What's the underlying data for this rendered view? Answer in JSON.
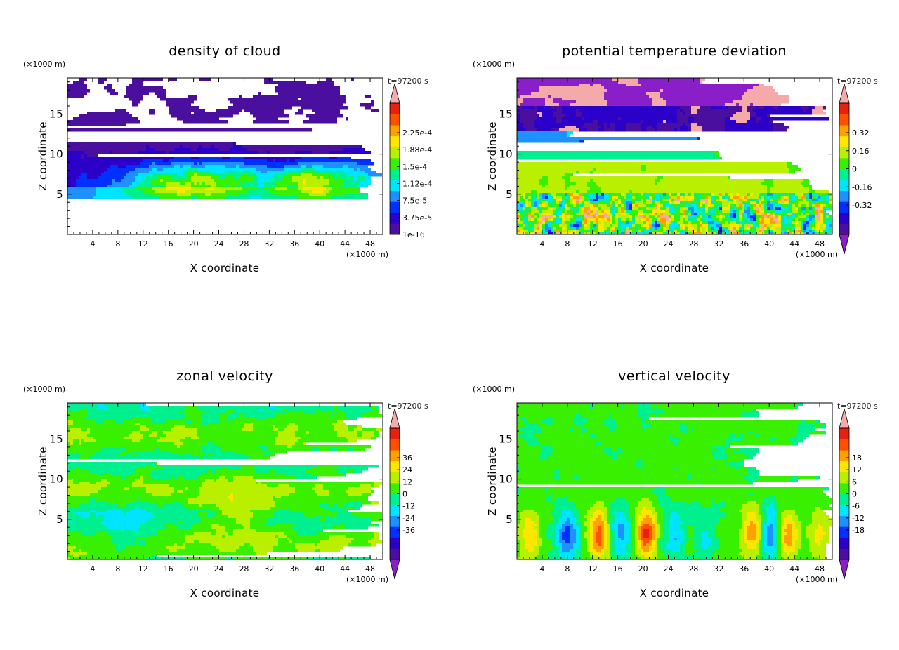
{
  "time_label": "t=97200 s",
  "chart_data": [
    {
      "type": "heatmap",
      "title": "density of cloud",
      "xlabel": "X coordinate",
      "ylabel": "Z coordinate",
      "x_unit": "(×1000 m)",
      "y_unit": "(×1000 m)",
      "x_ticks": [
        4,
        8,
        12,
        16,
        20,
        24,
        28,
        32,
        36,
        40,
        44,
        48
      ],
      "y_ticks": [
        5,
        10,
        15
      ],
      "xlim": [
        0,
        50
      ],
      "ylim": [
        0,
        19.5
      ],
      "colorbar_labels": [
        "2.25e-4",
        "1.88e-4",
        "1.5e-4",
        "1.12e-4",
        "7.5e-5",
        "3.75e-5",
        "1e-16"
      ],
      "colorbar_ends": "upper"
    },
    {
      "type": "heatmap",
      "title": "potential temperature deviation",
      "xlabel": "X coordinate",
      "ylabel": "Z coordinate",
      "x_unit": "(×1000 m)",
      "y_unit": "(×1000 m)",
      "x_ticks": [
        4,
        8,
        12,
        16,
        20,
        24,
        28,
        32,
        36,
        40,
        44,
        48
      ],
      "y_ticks": [
        5,
        10,
        15
      ],
      "xlim": [
        0,
        50
      ],
      "ylim": [
        0,
        19.5
      ],
      "colorbar_labels": [
        "0.32",
        "0.16",
        "0",
        "-0.16",
        "-0.32"
      ],
      "colorbar_ends": "both"
    },
    {
      "type": "heatmap",
      "title": "zonal velocity",
      "xlabel": "X coordinate",
      "ylabel": "Z coordinate",
      "x_unit": "(×1000 m)",
      "y_unit": "(×1000 m)",
      "x_ticks": [
        4,
        8,
        12,
        16,
        20,
        24,
        28,
        32,
        36,
        40,
        44,
        48
      ],
      "y_ticks": [
        5,
        10,
        15
      ],
      "xlim": [
        0,
        50
      ],
      "ylim": [
        0,
        19.5
      ],
      "colorbar_labels": [
        "36",
        "24",
        "12",
        "0",
        "-12",
        "-24",
        "-36"
      ],
      "colorbar_ends": "both"
    },
    {
      "type": "heatmap",
      "title": "vertical velocity",
      "xlabel": "X coordinate",
      "ylabel": "Z coordinate",
      "x_unit": "(×1000 m)",
      "y_unit": "(×1000 m)",
      "x_ticks": [
        4,
        8,
        12,
        16,
        20,
        24,
        28,
        32,
        36,
        40,
        44,
        48
      ],
      "y_ticks": [
        5,
        10,
        15
      ],
      "xlim": [
        0,
        50
      ],
      "ylim": [
        0,
        19.5
      ],
      "colorbar_labels": [
        "18",
        "12",
        "6",
        "0",
        "-6",
        "-12",
        "-18"
      ],
      "colorbar_ends": "both"
    }
  ]
}
